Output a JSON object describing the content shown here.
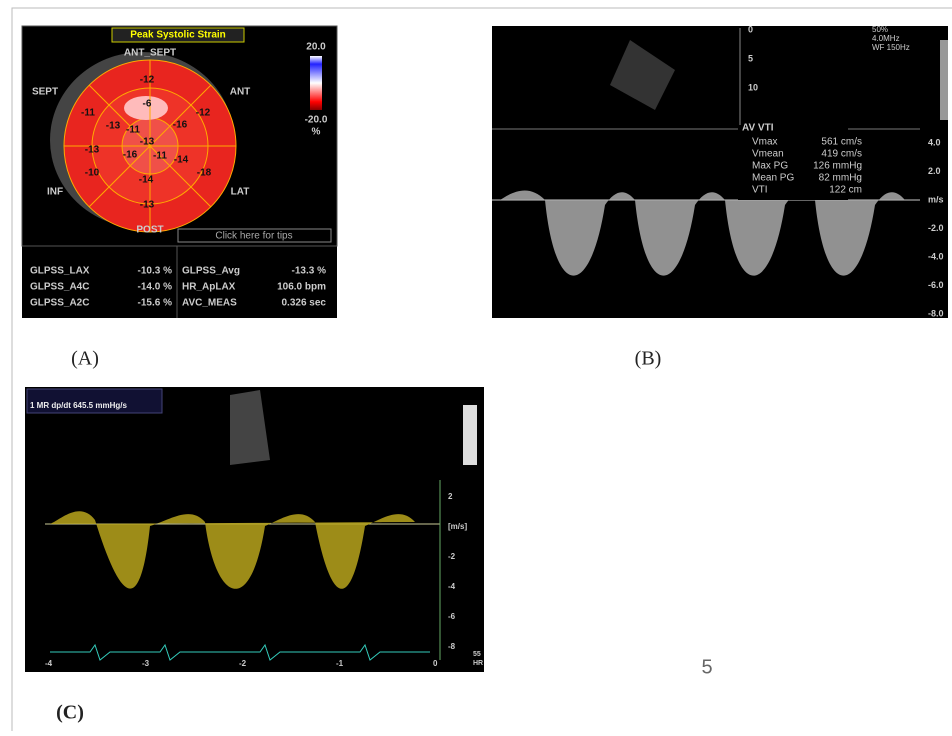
{
  "panel_a": {
    "label": "(A)",
    "title": "Peak Systolic Strain",
    "orientation": [
      "ANT_SEPT",
      "SEPT",
      "ANT",
      "INF",
      "LAT",
      "POST"
    ],
    "scale": {
      "max": "20.0",
      "min": "-20.0",
      "unit": "%"
    },
    "segments": [
      -12,
      -11,
      -6,
      -12,
      -13,
      -11,
      -16,
      -13,
      -13,
      -16,
      -11,
      -14,
      -10,
      -14,
      -18,
      -13
    ],
    "tips": "Click here for tips",
    "metrics": [
      [
        "GLPSS_LAX",
        "-10.3 %"
      ],
      [
        "GLPSS_A4C",
        "-14.0 %"
      ],
      [
        "GLPSS_A2C",
        "-15.6 %"
      ],
      [
        "GLPSS_Avg",
        "-13.3 %"
      ],
      [
        "HR_ApLAX",
        "106.0 bpm"
      ],
      [
        "AVC_MEAS",
        "0.326 sec"
      ]
    ]
  },
  "panel_b": {
    "label": "(B)",
    "settings": [
      "50%",
      "4.0MHz",
      "WF 150Hz"
    ],
    "depth": [
      "0",
      "5",
      "10"
    ],
    "measurement": "AV VTI",
    "metrics": [
      [
        "Vmax",
        "561 cm/s"
      ],
      [
        "Vmean",
        "419 cm/s"
      ],
      [
        "Max PG",
        "126 mmHg"
      ],
      [
        "Mean PG",
        "82 mmHg"
      ],
      [
        "VTI",
        "122 cm"
      ]
    ],
    "scale": [
      "4.0",
      "2.0",
      "m/s",
      "-2.0",
      "-4.0",
      "-6.0",
      "-8.0"
    ]
  },
  "panel_c": {
    "label": "(C)",
    "measurement": "1 MR dp/dt 645.5 mmHg/s",
    "scale": [
      "2",
      "[m/s]",
      "-2",
      "-4",
      "-6",
      "-8"
    ],
    "time": [
      "-4",
      "-3",
      "-2",
      "-1",
      "0"
    ],
    "hr": [
      "55",
      "HR"
    ]
  },
  "page_number": "5"
}
